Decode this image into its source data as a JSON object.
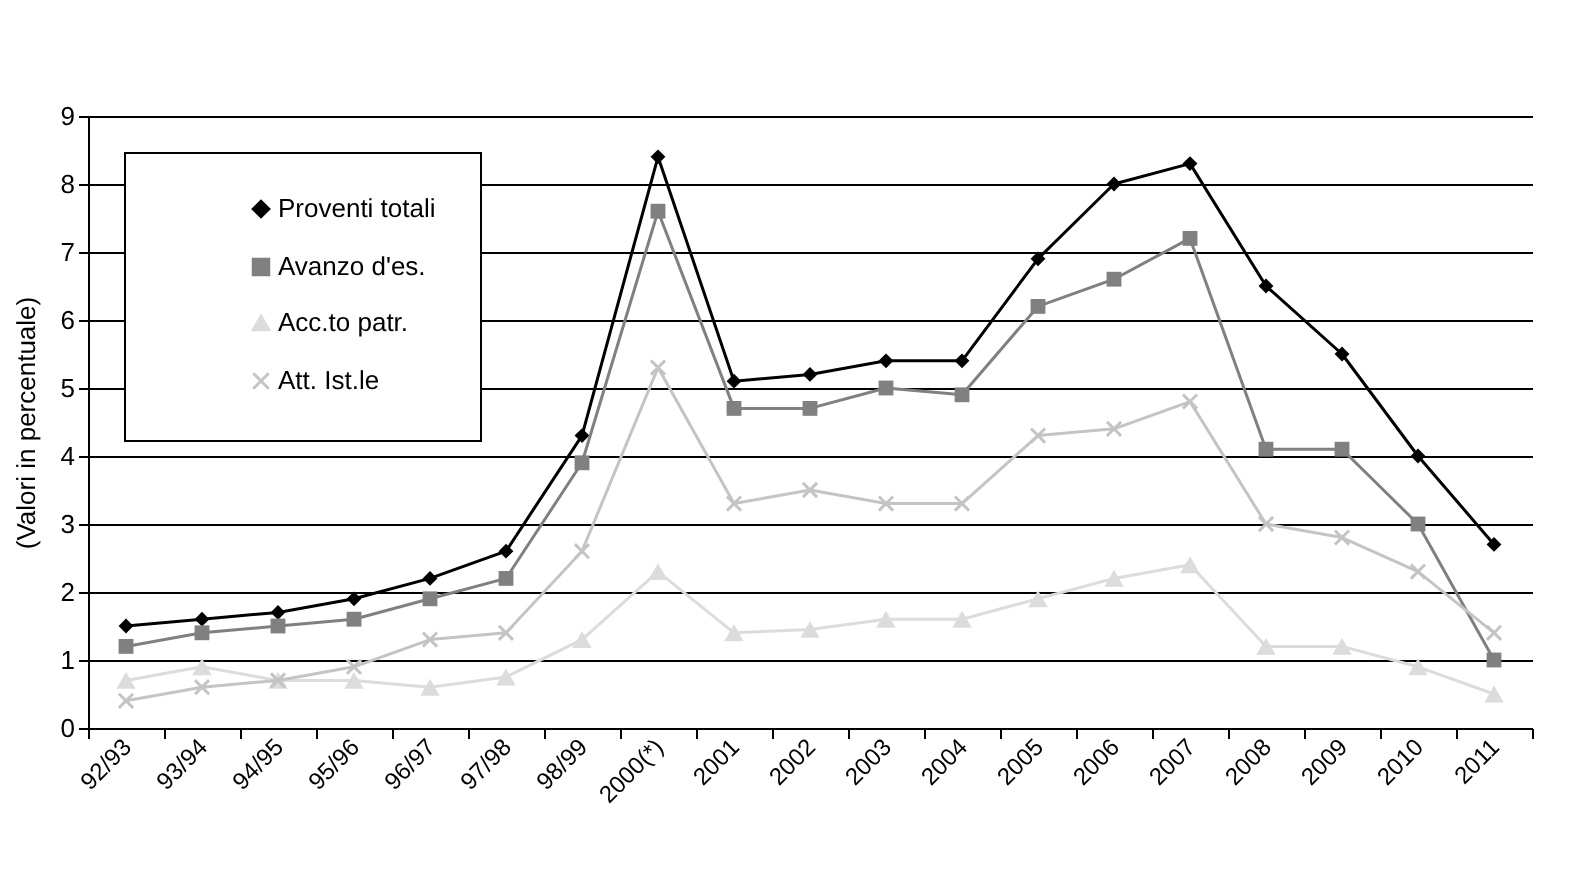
{
  "chart_data": {
    "type": "line",
    "ylabel": "(Valori in percentuale)",
    "categories": [
      "92/93",
      "93/94",
      "94/95",
      "95/96",
      "96/97",
      "97/98",
      "98/99",
      "2000(*)",
      "2001",
      "2002",
      "2003",
      "2004",
      "2005",
      "2006",
      "2007",
      "2008",
      "2009",
      "2010",
      "2011"
    ],
    "series": [
      {
        "name": "Proventi totali",
        "color": "#000000",
        "marker": "diamond",
        "values": [
          1.5,
          1.6,
          1.7,
          1.9,
          2.2,
          2.6,
          4.3,
          8.4,
          5.1,
          5.2,
          5.4,
          5.4,
          6.9,
          8.0,
          8.3,
          6.5,
          5.5,
          4.0,
          2.7
        ]
      },
      {
        "name": "Avanzo d'es.",
        "color": "#808080",
        "marker": "square",
        "values": [
          1.2,
          1.4,
          1.5,
          1.6,
          1.9,
          2.2,
          3.9,
          7.6,
          4.7,
          4.7,
          5.0,
          4.9,
          6.2,
          6.6,
          7.2,
          4.1,
          4.1,
          3.0,
          1.0
        ]
      },
      {
        "name": "Acc.to patr.",
        "color": "#dcdcdc",
        "marker": "triangle",
        "values": [
          0.7,
          0.9,
          0.7,
          0.7,
          0.6,
          0.75,
          1.3,
          2.3,
          1.4,
          1.45,
          1.6,
          1.6,
          1.9,
          2.2,
          2.4,
          1.2,
          1.2,
          0.9,
          0.5
        ]
      },
      {
        "name": "Att. Ist.le",
        "color": "#c4c4c4",
        "marker": "cross",
        "values": [
          0.4,
          0.6,
          0.7,
          0.9,
          1.3,
          1.4,
          2.6,
          5.3,
          3.3,
          3.5,
          3.3,
          3.3,
          4.3,
          4.4,
          4.8,
          3.0,
          2.8,
          2.3,
          1.4
        ]
      }
    ],
    "ylim": [
      0,
      9
    ],
    "yticks": [
      0,
      1,
      2,
      3,
      4,
      5,
      6,
      7,
      8,
      9
    ],
    "grid": "y",
    "legend": "top left",
    "line_style": "solid"
  }
}
